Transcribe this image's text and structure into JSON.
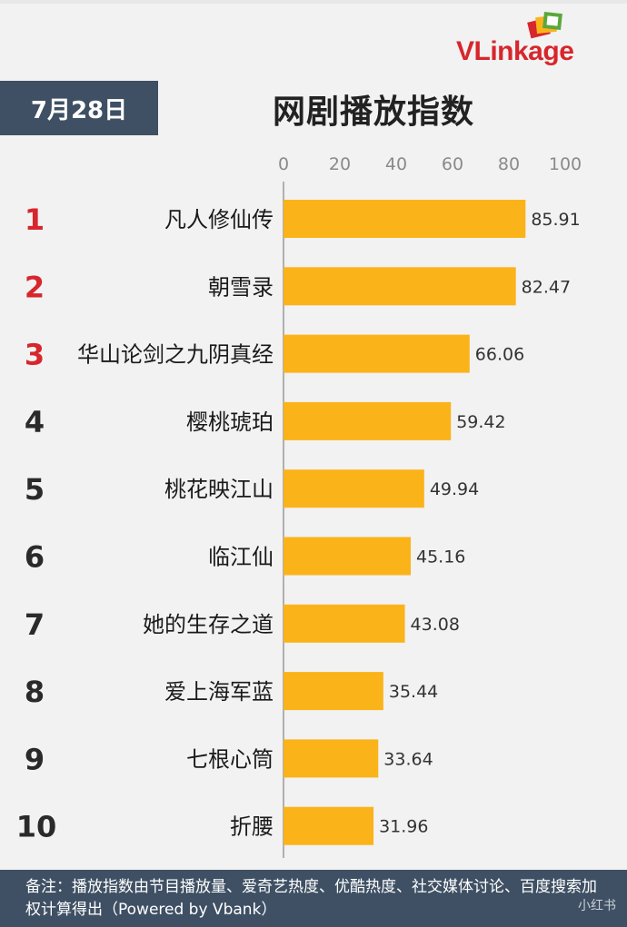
{
  "header": {
    "date": "7月28日",
    "title": "网剧播放指数",
    "logo": "VLinkage"
  },
  "chart_data": {
    "type": "bar",
    "orientation": "horizontal",
    "title": "网剧播放指数",
    "xlim": [
      0,
      100
    ],
    "x_ticks": [
      "0",
      "20",
      "40",
      "60",
      "80",
      "100"
    ],
    "grid": false,
    "ranks": [
      "1",
      "2",
      "3",
      "4",
      "5",
      "6",
      "7",
      "8",
      "9",
      "10"
    ],
    "categories": [
      "凡人修仙传",
      "朝雪录",
      "华山论剑之九阴真经",
      "樱桃琥珀",
      "桃花映江山",
      "临江仙",
      "她的生存之道",
      "爱上海军蓝",
      "七根心筒",
      "折腰"
    ],
    "values": [
      85.91,
      82.47,
      66.06,
      59.42,
      49.94,
      45.16,
      43.08,
      35.44,
      33.64,
      31.96
    ],
    "value_labels": [
      "85.91",
      "82.47",
      "66.06",
      "59.42",
      "49.94",
      "45.16",
      "43.08",
      "35.44",
      "33.64",
      "31.96"
    ],
    "colors": {
      "bar": "#fbb31a",
      "rank_top3": "#d7262c",
      "rank_other": "#2a2a2a",
      "axis": "#9a9a9a"
    }
  },
  "footer": {
    "note": "备注：播放指数由节目播放量、爱奇艺热度、优酷热度、社交媒体讨论、百度搜索加权计算得出（Powered by Vbank）"
  },
  "watermark": "小红书"
}
